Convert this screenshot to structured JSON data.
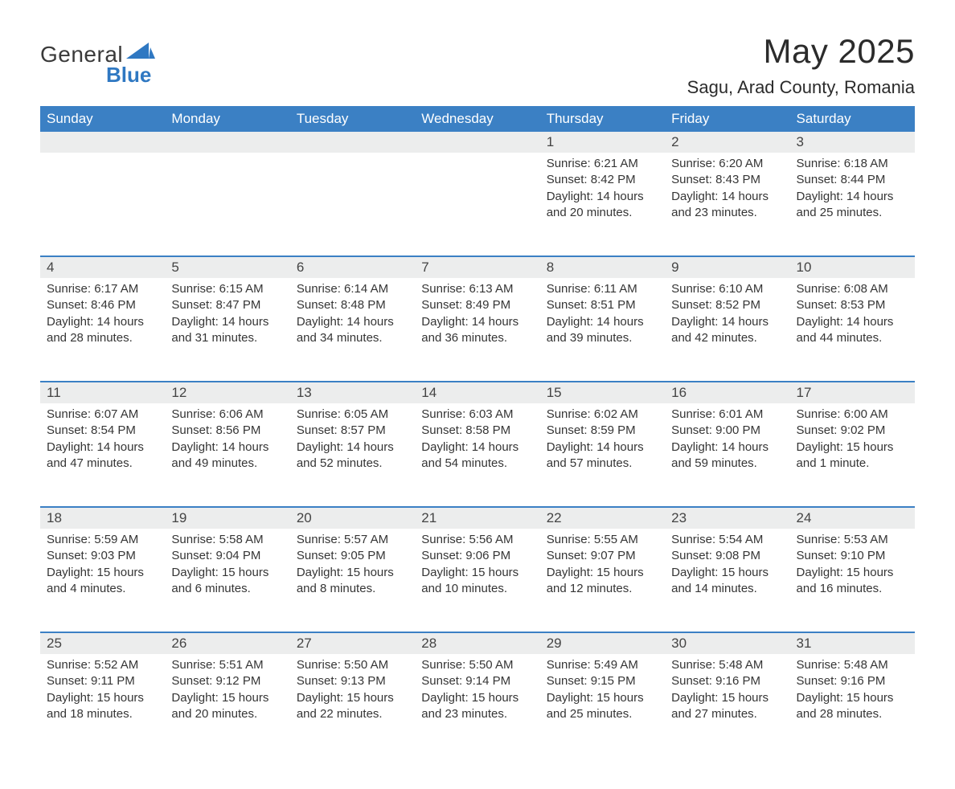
{
  "brand": {
    "word1": "General",
    "word2": "Blue",
    "word2_color": "#2f78c2",
    "triangle_color": "#2f78c2"
  },
  "header": {
    "title": "May 2025",
    "location": "Sagu, Arad County, Romania"
  },
  "calendar": {
    "type": "table",
    "header_bg_color": "#3b80c4",
    "header_text_color": "#ffffff",
    "daynum_bg_color": "#eceded",
    "daynum_text_color": "#444444",
    "week_border_color": "#3b80c4",
    "body_bg_color": "#ffffff",
    "body_text_color": "#353535",
    "font_size_header_pt": 13,
    "font_size_body_pt": 11,
    "columns": [
      "Sunday",
      "Monday",
      "Tuesday",
      "Wednesday",
      "Thursday",
      "Friday",
      "Saturday"
    ],
    "weeks": [
      [
        null,
        null,
        null,
        null,
        {
          "n": "1",
          "sr": "Sunrise: 6:21 AM",
          "ss": "Sunset: 8:42 PM",
          "d1": "Daylight: 14 hours",
          "d2": "and 20 minutes."
        },
        {
          "n": "2",
          "sr": "Sunrise: 6:20 AM",
          "ss": "Sunset: 8:43 PM",
          "d1": "Daylight: 14 hours",
          "d2": "and 23 minutes."
        },
        {
          "n": "3",
          "sr": "Sunrise: 6:18 AM",
          "ss": "Sunset: 8:44 PM",
          "d1": "Daylight: 14 hours",
          "d2": "and 25 minutes."
        }
      ],
      [
        {
          "n": "4",
          "sr": "Sunrise: 6:17 AM",
          "ss": "Sunset: 8:46 PM",
          "d1": "Daylight: 14 hours",
          "d2": "and 28 minutes."
        },
        {
          "n": "5",
          "sr": "Sunrise: 6:15 AM",
          "ss": "Sunset: 8:47 PM",
          "d1": "Daylight: 14 hours",
          "d2": "and 31 minutes."
        },
        {
          "n": "6",
          "sr": "Sunrise: 6:14 AM",
          "ss": "Sunset: 8:48 PM",
          "d1": "Daylight: 14 hours",
          "d2": "and 34 minutes."
        },
        {
          "n": "7",
          "sr": "Sunrise: 6:13 AM",
          "ss": "Sunset: 8:49 PM",
          "d1": "Daylight: 14 hours",
          "d2": "and 36 minutes."
        },
        {
          "n": "8",
          "sr": "Sunrise: 6:11 AM",
          "ss": "Sunset: 8:51 PM",
          "d1": "Daylight: 14 hours",
          "d2": "and 39 minutes."
        },
        {
          "n": "9",
          "sr": "Sunrise: 6:10 AM",
          "ss": "Sunset: 8:52 PM",
          "d1": "Daylight: 14 hours",
          "d2": "and 42 minutes."
        },
        {
          "n": "10",
          "sr": "Sunrise: 6:08 AM",
          "ss": "Sunset: 8:53 PM",
          "d1": "Daylight: 14 hours",
          "d2": "and 44 minutes."
        }
      ],
      [
        {
          "n": "11",
          "sr": "Sunrise: 6:07 AM",
          "ss": "Sunset: 8:54 PM",
          "d1": "Daylight: 14 hours",
          "d2": "and 47 minutes."
        },
        {
          "n": "12",
          "sr": "Sunrise: 6:06 AM",
          "ss": "Sunset: 8:56 PM",
          "d1": "Daylight: 14 hours",
          "d2": "and 49 minutes."
        },
        {
          "n": "13",
          "sr": "Sunrise: 6:05 AM",
          "ss": "Sunset: 8:57 PM",
          "d1": "Daylight: 14 hours",
          "d2": "and 52 minutes."
        },
        {
          "n": "14",
          "sr": "Sunrise: 6:03 AM",
          "ss": "Sunset: 8:58 PM",
          "d1": "Daylight: 14 hours",
          "d2": "and 54 minutes."
        },
        {
          "n": "15",
          "sr": "Sunrise: 6:02 AM",
          "ss": "Sunset: 8:59 PM",
          "d1": "Daylight: 14 hours",
          "d2": "and 57 minutes."
        },
        {
          "n": "16",
          "sr": "Sunrise: 6:01 AM",
          "ss": "Sunset: 9:00 PM",
          "d1": "Daylight: 14 hours",
          "d2": "and 59 minutes."
        },
        {
          "n": "17",
          "sr": "Sunrise: 6:00 AM",
          "ss": "Sunset: 9:02 PM",
          "d1": "Daylight: 15 hours",
          "d2": "and 1 minute."
        }
      ],
      [
        {
          "n": "18",
          "sr": "Sunrise: 5:59 AM",
          "ss": "Sunset: 9:03 PM",
          "d1": "Daylight: 15 hours",
          "d2": "and 4 minutes."
        },
        {
          "n": "19",
          "sr": "Sunrise: 5:58 AM",
          "ss": "Sunset: 9:04 PM",
          "d1": "Daylight: 15 hours",
          "d2": "and 6 minutes."
        },
        {
          "n": "20",
          "sr": "Sunrise: 5:57 AM",
          "ss": "Sunset: 9:05 PM",
          "d1": "Daylight: 15 hours",
          "d2": "and 8 minutes."
        },
        {
          "n": "21",
          "sr": "Sunrise: 5:56 AM",
          "ss": "Sunset: 9:06 PM",
          "d1": "Daylight: 15 hours",
          "d2": "and 10 minutes."
        },
        {
          "n": "22",
          "sr": "Sunrise: 5:55 AM",
          "ss": "Sunset: 9:07 PM",
          "d1": "Daylight: 15 hours",
          "d2": "and 12 minutes."
        },
        {
          "n": "23",
          "sr": "Sunrise: 5:54 AM",
          "ss": "Sunset: 9:08 PM",
          "d1": "Daylight: 15 hours",
          "d2": "and 14 minutes."
        },
        {
          "n": "24",
          "sr": "Sunrise: 5:53 AM",
          "ss": "Sunset: 9:10 PM",
          "d1": "Daylight: 15 hours",
          "d2": "and 16 minutes."
        }
      ],
      [
        {
          "n": "25",
          "sr": "Sunrise: 5:52 AM",
          "ss": "Sunset: 9:11 PM",
          "d1": "Daylight: 15 hours",
          "d2": "and 18 minutes."
        },
        {
          "n": "26",
          "sr": "Sunrise: 5:51 AM",
          "ss": "Sunset: 9:12 PM",
          "d1": "Daylight: 15 hours",
          "d2": "and 20 minutes."
        },
        {
          "n": "27",
          "sr": "Sunrise: 5:50 AM",
          "ss": "Sunset: 9:13 PM",
          "d1": "Daylight: 15 hours",
          "d2": "and 22 minutes."
        },
        {
          "n": "28",
          "sr": "Sunrise: 5:50 AM",
          "ss": "Sunset: 9:14 PM",
          "d1": "Daylight: 15 hours",
          "d2": "and 23 minutes."
        },
        {
          "n": "29",
          "sr": "Sunrise: 5:49 AM",
          "ss": "Sunset: 9:15 PM",
          "d1": "Daylight: 15 hours",
          "d2": "and 25 minutes."
        },
        {
          "n": "30",
          "sr": "Sunrise: 5:48 AM",
          "ss": "Sunset: 9:16 PM",
          "d1": "Daylight: 15 hours",
          "d2": "and 27 minutes."
        },
        {
          "n": "31",
          "sr": "Sunrise: 5:48 AM",
          "ss": "Sunset: 9:16 PM",
          "d1": "Daylight: 15 hours",
          "d2": "and 28 minutes."
        }
      ]
    ]
  }
}
